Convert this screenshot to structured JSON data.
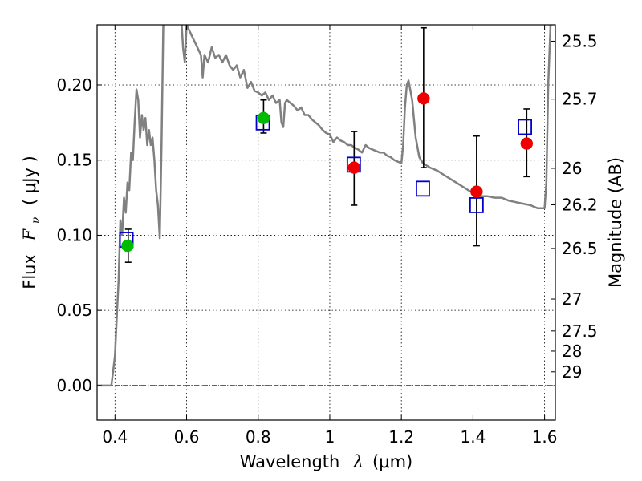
{
  "chart_data": {
    "type": "scatter",
    "xlabel": {
      "prefix": "Wavelength",
      "symbol": "λ",
      "unit": "(μm)"
    },
    "ylabel": {
      "prefix": "Flux",
      "symbol": "F",
      "subscript": "ν",
      "unit": "( μJy )"
    },
    "y2label": "Magnitude (AB)",
    "xlim": [
      0.35,
      1.63
    ],
    "ylim": [
      -0.023,
      0.24
    ],
    "grid": true,
    "x_ticks": [
      {
        "value": 0.4,
        "label": "0.4"
      },
      {
        "value": 0.6,
        "label": "0.6"
      },
      {
        "value": 0.8,
        "label": "0.8"
      },
      {
        "value": 1.0,
        "label": "1"
      },
      {
        "value": 1.2,
        "label": "1.2"
      },
      {
        "value": 1.4,
        "label": "1.4"
      },
      {
        "value": 1.6,
        "label": "1.6"
      }
    ],
    "y_ticks": [
      {
        "value": 0.0,
        "label": "0.00"
      },
      {
        "value": 0.05,
        "label": "0.05"
      },
      {
        "value": 0.1,
        "label": "0.10"
      },
      {
        "value": 0.15,
        "label": "0.15"
      },
      {
        "value": 0.2,
        "label": "0.20"
      }
    ],
    "y2_ticks": [
      {
        "value": 25.5,
        "label": "25.5"
      },
      {
        "value": 25.7,
        "label": "25.7"
      },
      {
        "value": 26.0,
        "label": "26"
      },
      {
        "value": 26.2,
        "label": "26.2"
      },
      {
        "value": 26.5,
        "label": "26.5"
      },
      {
        "value": 27.0,
        "label": "27"
      },
      {
        "value": 27.5,
        "label": "27.5"
      },
      {
        "value": 28.0,
        "label": "28"
      },
      {
        "value": 29.0,
        "label": "29"
      }
    ],
    "series": [
      {
        "kind": "line",
        "color": "#808080",
        "points": [
          [
            0.35,
            0.0
          ],
          [
            0.39,
            0.0
          ],
          [
            0.395,
            0.01
          ],
          [
            0.4,
            0.02
          ],
          [
            0.405,
            0.045
          ],
          [
            0.41,
            0.07
          ],
          [
            0.415,
            0.11
          ],
          [
            0.42,
            0.1
          ],
          [
            0.425,
            0.125
          ],
          [
            0.43,
            0.115
          ],
          [
            0.435,
            0.135
          ],
          [
            0.44,
            0.13
          ],
          [
            0.445,
            0.155
          ],
          [
            0.45,
            0.15
          ],
          [
            0.455,
            0.175
          ],
          [
            0.46,
            0.197
          ],
          [
            0.465,
            0.19
          ],
          [
            0.47,
            0.165
          ],
          [
            0.475,
            0.18
          ],
          [
            0.48,
            0.17
          ],
          [
            0.485,
            0.178
          ],
          [
            0.49,
            0.16
          ],
          [
            0.495,
            0.17
          ],
          [
            0.5,
            0.16
          ],
          [
            0.505,
            0.165
          ],
          [
            0.51,
            0.15
          ],
          [
            0.515,
            0.13
          ],
          [
            0.52,
            0.12
          ],
          [
            0.525,
            0.098
          ],
          [
            0.53,
            0.16
          ],
          [
            0.535,
            0.24
          ],
          [
            0.54,
            0.26
          ],
          [
            0.58,
            0.26
          ],
          [
            0.585,
            0.245
          ],
          [
            0.59,
            0.225
          ],
          [
            0.595,
            0.215
          ],
          [
            0.6,
            0.24
          ],
          [
            0.61,
            0.235
          ],
          [
            0.62,
            0.23
          ],
          [
            0.63,
            0.225
          ],
          [
            0.64,
            0.22
          ],
          [
            0.645,
            0.205
          ],
          [
            0.65,
            0.22
          ],
          [
            0.66,
            0.215
          ],
          [
            0.67,
            0.225
          ],
          [
            0.68,
            0.218
          ],
          [
            0.69,
            0.22
          ],
          [
            0.7,
            0.215
          ],
          [
            0.71,
            0.22
          ],
          [
            0.72,
            0.213
          ],
          [
            0.73,
            0.21
          ],
          [
            0.74,
            0.213
          ],
          [
            0.75,
            0.205
          ],
          [
            0.76,
            0.21
          ],
          [
            0.77,
            0.198
          ],
          [
            0.78,
            0.202
          ],
          [
            0.79,
            0.196
          ],
          [
            0.8,
            0.195
          ],
          [
            0.81,
            0.193
          ],
          [
            0.82,
            0.195
          ],
          [
            0.83,
            0.19
          ],
          [
            0.84,
            0.193
          ],
          [
            0.85,
            0.188
          ],
          [
            0.86,
            0.19
          ],
          [
            0.865,
            0.175
          ],
          [
            0.87,
            0.172
          ],
          [
            0.875,
            0.188
          ],
          [
            0.88,
            0.19
          ],
          [
            0.89,
            0.188
          ],
          [
            0.9,
            0.186
          ],
          [
            0.91,
            0.183
          ],
          [
            0.92,
            0.185
          ],
          [
            0.93,
            0.18
          ],
          [
            0.94,
            0.18
          ],
          [
            0.95,
            0.177
          ],
          [
            0.96,
            0.175
          ],
          [
            0.97,
            0.173
          ],
          [
            0.98,
            0.17
          ],
          [
            0.99,
            0.168
          ],
          [
            1.0,
            0.167
          ],
          [
            1.01,
            0.162
          ],
          [
            1.02,
            0.165
          ],
          [
            1.03,
            0.163
          ],
          [
            1.04,
            0.162
          ],
          [
            1.05,
            0.16
          ],
          [
            1.06,
            0.16
          ],
          [
            1.07,
            0.158
          ],
          [
            1.08,
            0.157
          ],
          [
            1.09,
            0.155
          ],
          [
            1.1,
            0.16
          ],
          [
            1.11,
            0.158
          ],
          [
            1.12,
            0.157
          ],
          [
            1.13,
            0.156
          ],
          [
            1.14,
            0.155
          ],
          [
            1.15,
            0.155
          ],
          [
            1.16,
            0.153
          ],
          [
            1.17,
            0.152
          ],
          [
            1.18,
            0.15
          ],
          [
            1.19,
            0.149
          ],
          [
            1.2,
            0.148
          ],
          [
            1.205,
            0.16
          ],
          [
            1.21,
            0.185
          ],
          [
            1.215,
            0.2
          ],
          [
            1.22,
            0.203
          ],
          [
            1.23,
            0.19
          ],
          [
            1.24,
            0.165
          ],
          [
            1.25,
            0.152
          ],
          [
            1.26,
            0.148
          ],
          [
            1.28,
            0.145
          ],
          [
            1.3,
            0.143
          ],
          [
            1.32,
            0.14
          ],
          [
            1.34,
            0.137
          ],
          [
            1.36,
            0.134
          ],
          [
            1.38,
            0.131
          ],
          [
            1.4,
            0.128
          ],
          [
            1.42,
            0.126
          ],
          [
            1.44,
            0.126
          ],
          [
            1.46,
            0.125
          ],
          [
            1.48,
            0.125
          ],
          [
            1.5,
            0.123
          ],
          [
            1.52,
            0.122
          ],
          [
            1.54,
            0.121
          ],
          [
            1.56,
            0.12
          ],
          [
            1.58,
            0.118
          ],
          [
            1.6,
            0.118
          ],
          [
            1.605,
            0.135
          ],
          [
            1.61,
            0.2
          ],
          [
            1.62,
            0.26
          ]
        ]
      },
      {
        "kind": "scatter",
        "marker": "open-square",
        "color": "#0000cc",
        "points": [
          [
            0.432,
            0.097
          ],
          [
            0.813,
            0.175
          ],
          [
            1.067,
            0.147
          ],
          [
            1.26,
            0.131
          ],
          [
            1.41,
            0.12
          ],
          [
            1.545,
            0.172
          ]
        ]
      },
      {
        "kind": "scatter",
        "marker": "filled-circle",
        "color": "#00bb00",
        "points": [
          [
            0.435,
            0.093
          ],
          [
            0.815,
            0.178
          ]
        ]
      },
      {
        "kind": "scatter",
        "marker": "filled-circle",
        "color": "#ee0000",
        "points": [
          [
            1.068,
            0.145
          ],
          [
            1.262,
            0.191
          ],
          [
            1.41,
            0.129
          ],
          [
            1.55,
            0.161
          ]
        ]
      },
      {
        "kind": "errorbars",
        "color": "#000000",
        "bars": [
          {
            "x": 0.437,
            "low": 0.082,
            "high": 0.104
          },
          {
            "x": 0.815,
            "low": 0.168,
            "high": 0.19
          },
          {
            "x": 1.068,
            "low": 0.12,
            "high": 0.169
          },
          {
            "x": 1.262,
            "low": 0.145,
            "high": 0.238
          },
          {
            "x": 1.41,
            "low": 0.093,
            "high": 0.166
          },
          {
            "x": 1.55,
            "low": 0.139,
            "high": 0.184
          }
        ]
      }
    ]
  }
}
